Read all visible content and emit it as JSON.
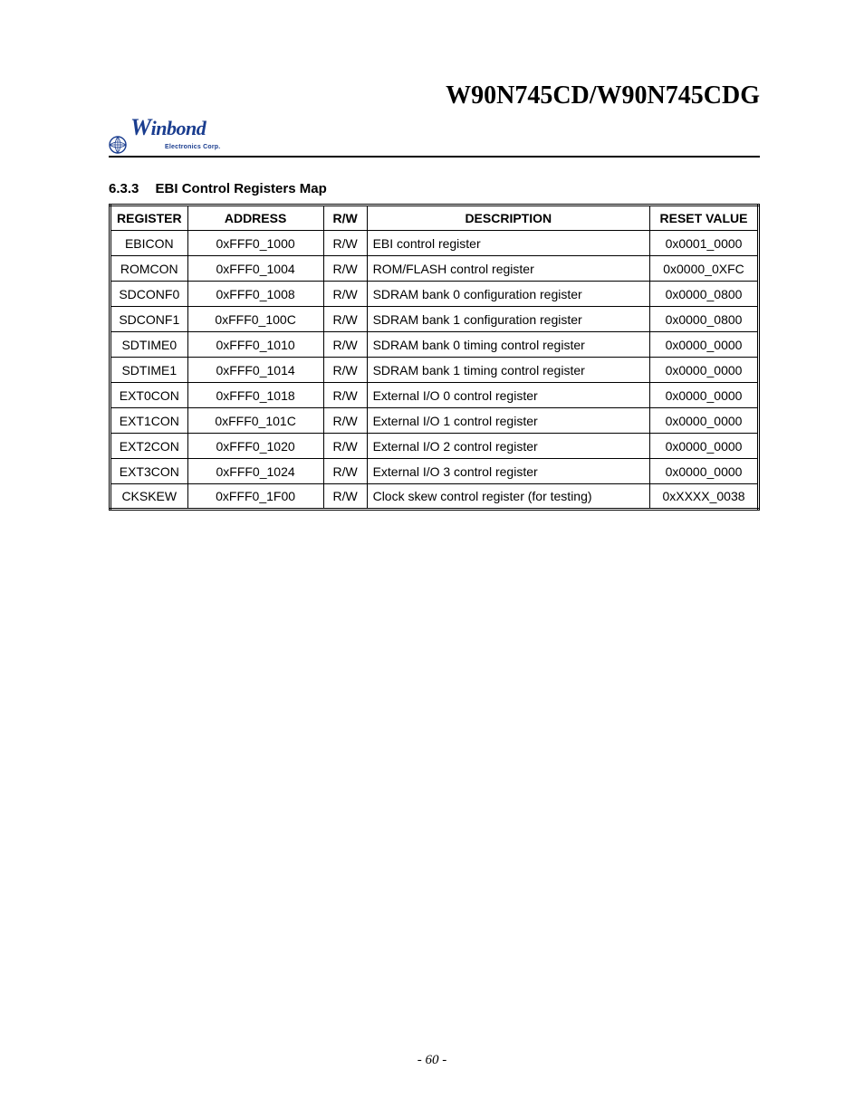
{
  "document_title": "W90N745CD/W90N745CDG",
  "logo": {
    "brand_big_char": "W",
    "brand_rest": "inbond",
    "subtitle": "Electronics Corp.",
    "color": "#1a3d8f"
  },
  "section": {
    "number": "6.3.3",
    "title": "EBI Control Registers Map"
  },
  "table": {
    "columns": [
      "REGISTER",
      "ADDRESS",
      "R/W",
      "DESCRIPTION",
      "RESET VALUE"
    ],
    "rows": [
      {
        "register": "EBICON",
        "address": "0xFFF0_1000",
        "rw": "R/W",
        "description": "EBI control register",
        "reset": "0x0001_0000"
      },
      {
        "register": "ROMCON",
        "address": "0xFFF0_1004",
        "rw": "R/W",
        "description": "ROM/FLASH control register",
        "reset": "0x0000_0XFC"
      },
      {
        "register": "SDCONF0",
        "address": "0xFFF0_1008",
        "rw": "R/W",
        "description": "SDRAM bank 0 configuration register",
        "reset": "0x0000_0800"
      },
      {
        "register": "SDCONF1",
        "address": "0xFFF0_100C",
        "rw": "R/W",
        "description": "SDRAM bank 1 configuration register",
        "reset": "0x0000_0800"
      },
      {
        "register": "SDTIME0",
        "address": "0xFFF0_1010",
        "rw": "R/W",
        "description": "SDRAM bank 0 timing control register",
        "reset": "0x0000_0000"
      },
      {
        "register": "SDTIME1",
        "address": "0xFFF0_1014",
        "rw": "R/W",
        "description": "SDRAM bank 1 timing control register",
        "reset": "0x0000_0000"
      },
      {
        "register": "EXT0CON",
        "address": "0xFFF0_1018",
        "rw": "R/W",
        "description": "External I/O 0 control register",
        "reset": "0x0000_0000"
      },
      {
        "register": "EXT1CON",
        "address": "0xFFF0_101C",
        "rw": "R/W",
        "description": "External I/O 1 control register",
        "reset": "0x0000_0000"
      },
      {
        "register": "EXT2CON",
        "address": "0xFFF0_1020",
        "rw": "R/W",
        "description": "External I/O 2 control register",
        "reset": "0x0000_0000"
      },
      {
        "register": "EXT3CON",
        "address": "0xFFF0_1024",
        "rw": "R/W",
        "description": "External I/O 3 control register",
        "reset": "0x0000_0000"
      },
      {
        "register": "CKSKEW",
        "address": "0xFFF0_1F00",
        "rw": "R/W",
        "description": "Clock skew control register (for testing)",
        "reset": "0xXXXX_0038"
      }
    ]
  },
  "page_number": "- 60 -"
}
